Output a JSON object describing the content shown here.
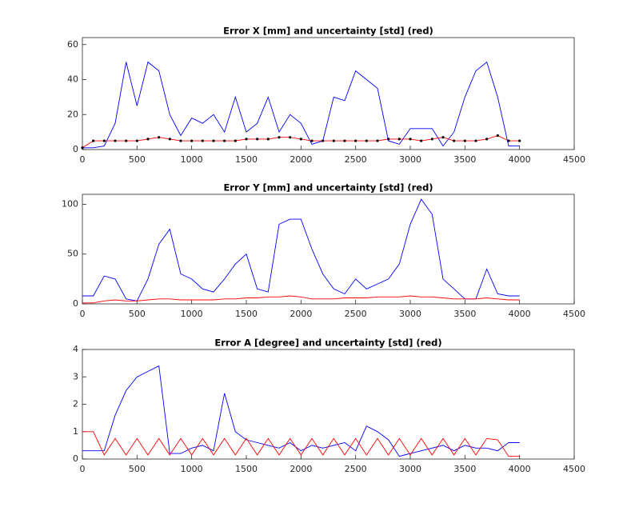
{
  "chart_data": [
    {
      "type": "line",
      "title": "Error X [mm] and uncertainty [std] (red)",
      "x": [
        0,
        100,
        200,
        300,
        400,
        500,
        600,
        700,
        800,
        900,
        1000,
        1100,
        1200,
        1300,
        1400,
        1500,
        1600,
        1700,
        1800,
        1900,
        2000,
        2100,
        2200,
        2300,
        2400,
        2500,
        2600,
        2700,
        2800,
        2900,
        3000,
        3100,
        3200,
        3300,
        3400,
        3500,
        3600,
        3700,
        3800,
        3900,
        4000
      ],
      "xlim": [
        0,
        4500
      ],
      "xticks": [
        0,
        500,
        1000,
        1500,
        2000,
        2500,
        3000,
        3500,
        4000,
        4500
      ],
      "ylim": [
        0,
        64
      ],
      "yticks": [
        0,
        20,
        40,
        60
      ],
      "series": [
        {
          "color": "#0000ff",
          "values": [
            1,
            1,
            2,
            15,
            50,
            25,
            50,
            45,
            20,
            8,
            18,
            15,
            20,
            10,
            30,
            10,
            15,
            30,
            10,
            20,
            15,
            3,
            5,
            30,
            28,
            45,
            40,
            35,
            5,
            3,
            12,
            12,
            12,
            2,
            10,
            30,
            45,
            50,
            30,
            2,
            2
          ]
        },
        {
          "color": "#ff0000",
          "marker_color": "#000000",
          "values": [
            1,
            5,
            5,
            5,
            5,
            5,
            6,
            7,
            6,
            5,
            5,
            5,
            5,
            5,
            5,
            6,
            6,
            6,
            7,
            7,
            6,
            5,
            5,
            5,
            5,
            5,
            5,
            5,
            6,
            6,
            6,
            5,
            6,
            7,
            5,
            5,
            5,
            6,
            8,
            5,
            5
          ]
        }
      ]
    },
    {
      "type": "line",
      "title": "Error Y [mm] and uncertainty [std] (red)",
      "x": [
        0,
        100,
        200,
        300,
        400,
        500,
        600,
        700,
        800,
        900,
        1000,
        1100,
        1200,
        1300,
        1400,
        1500,
        1600,
        1700,
        1800,
        1900,
        2000,
        2100,
        2200,
        2300,
        2400,
        2500,
        2600,
        2700,
        2800,
        2900,
        3000,
        3100,
        3200,
        3300,
        3400,
        3500,
        3600,
        3700,
        3800,
        3900,
        4000
      ],
      "xlim": [
        0,
        4500
      ],
      "xticks": [
        0,
        500,
        1000,
        1500,
        2000,
        2500,
        3000,
        3500,
        4000,
        4500
      ],
      "ylim": [
        0,
        110
      ],
      "yticks": [
        0,
        50,
        100
      ],
      "series": [
        {
          "color": "#0000ff",
          "values": [
            8,
            8,
            28,
            25,
            5,
            3,
            25,
            60,
            75,
            30,
            25,
            15,
            12,
            25,
            40,
            50,
            15,
            12,
            80,
            85,
            85,
            55,
            30,
            15,
            10,
            25,
            15,
            20,
            25,
            40,
            80,
            105,
            90,
            25,
            15,
            5,
            5,
            35,
            10,
            8,
            8
          ]
        },
        {
          "color": "#ff0000",
          "values": [
            1,
            1,
            3,
            4,
            3,
            3,
            4,
            5,
            5,
            4,
            4,
            4,
            4,
            5,
            5,
            6,
            6,
            7,
            7,
            8,
            7,
            5,
            5,
            5,
            6,
            6,
            6,
            7,
            7,
            7,
            8,
            7,
            7,
            6,
            5,
            5,
            5,
            6,
            5,
            4,
            4
          ]
        }
      ]
    },
    {
      "type": "line",
      "title": "Error A [degree] and uncertainty [std] (red)",
      "x": [
        0,
        100,
        200,
        300,
        400,
        500,
        600,
        700,
        800,
        900,
        1000,
        1100,
        1200,
        1300,
        1400,
        1500,
        1600,
        1700,
        1800,
        1900,
        2000,
        2100,
        2200,
        2300,
        2400,
        2500,
        2600,
        2700,
        2800,
        2900,
        3000,
        3100,
        3200,
        3300,
        3400,
        3500,
        3600,
        3700,
        3800,
        3900,
        4000
      ],
      "xlim": [
        0,
        4500
      ],
      "xticks": [
        0,
        500,
        1000,
        1500,
        2000,
        2500,
        3000,
        3500,
        4000,
        4500
      ],
      "ylim": [
        0,
        4
      ],
      "yticks": [
        0,
        1,
        2,
        3,
        4
      ],
      "series": [
        {
          "color": "#0000ff",
          "values": [
            0.3,
            0.3,
            0.3,
            1.6,
            2.5,
            3.0,
            3.2,
            3.4,
            0.2,
            0.2,
            0.4,
            0.5,
            0.3,
            2.4,
            1.0,
            0.7,
            0.6,
            0.5,
            0.4,
            0.6,
            0.3,
            0.5,
            0.4,
            0.5,
            0.6,
            0.3,
            1.2,
            1.0,
            0.7,
            0.1,
            0.2,
            0.3,
            0.4,
            0.5,
            0.3,
            0.5,
            0.4,
            0.4,
            0.3,
            0.6,
            0.6
          ]
        },
        {
          "color": "#ff0000",
          "values": [
            1,
            1,
            0.15,
            0.75,
            0.15,
            0.75,
            0.15,
            0.75,
            0.15,
            0.75,
            0.15,
            0.75,
            0.15,
            0.75,
            0.15,
            0.75,
            0.15,
            0.75,
            0.15,
            0.75,
            0.15,
            0.75,
            0.15,
            0.75,
            0.15,
            0.75,
            0.15,
            0.75,
            0.15,
            0.75,
            0.15,
            0.75,
            0.15,
            0.75,
            0.15,
            0.75,
            0.15,
            0.75,
            0.7,
            0.1,
            0.1
          ]
        }
      ]
    }
  ]
}
